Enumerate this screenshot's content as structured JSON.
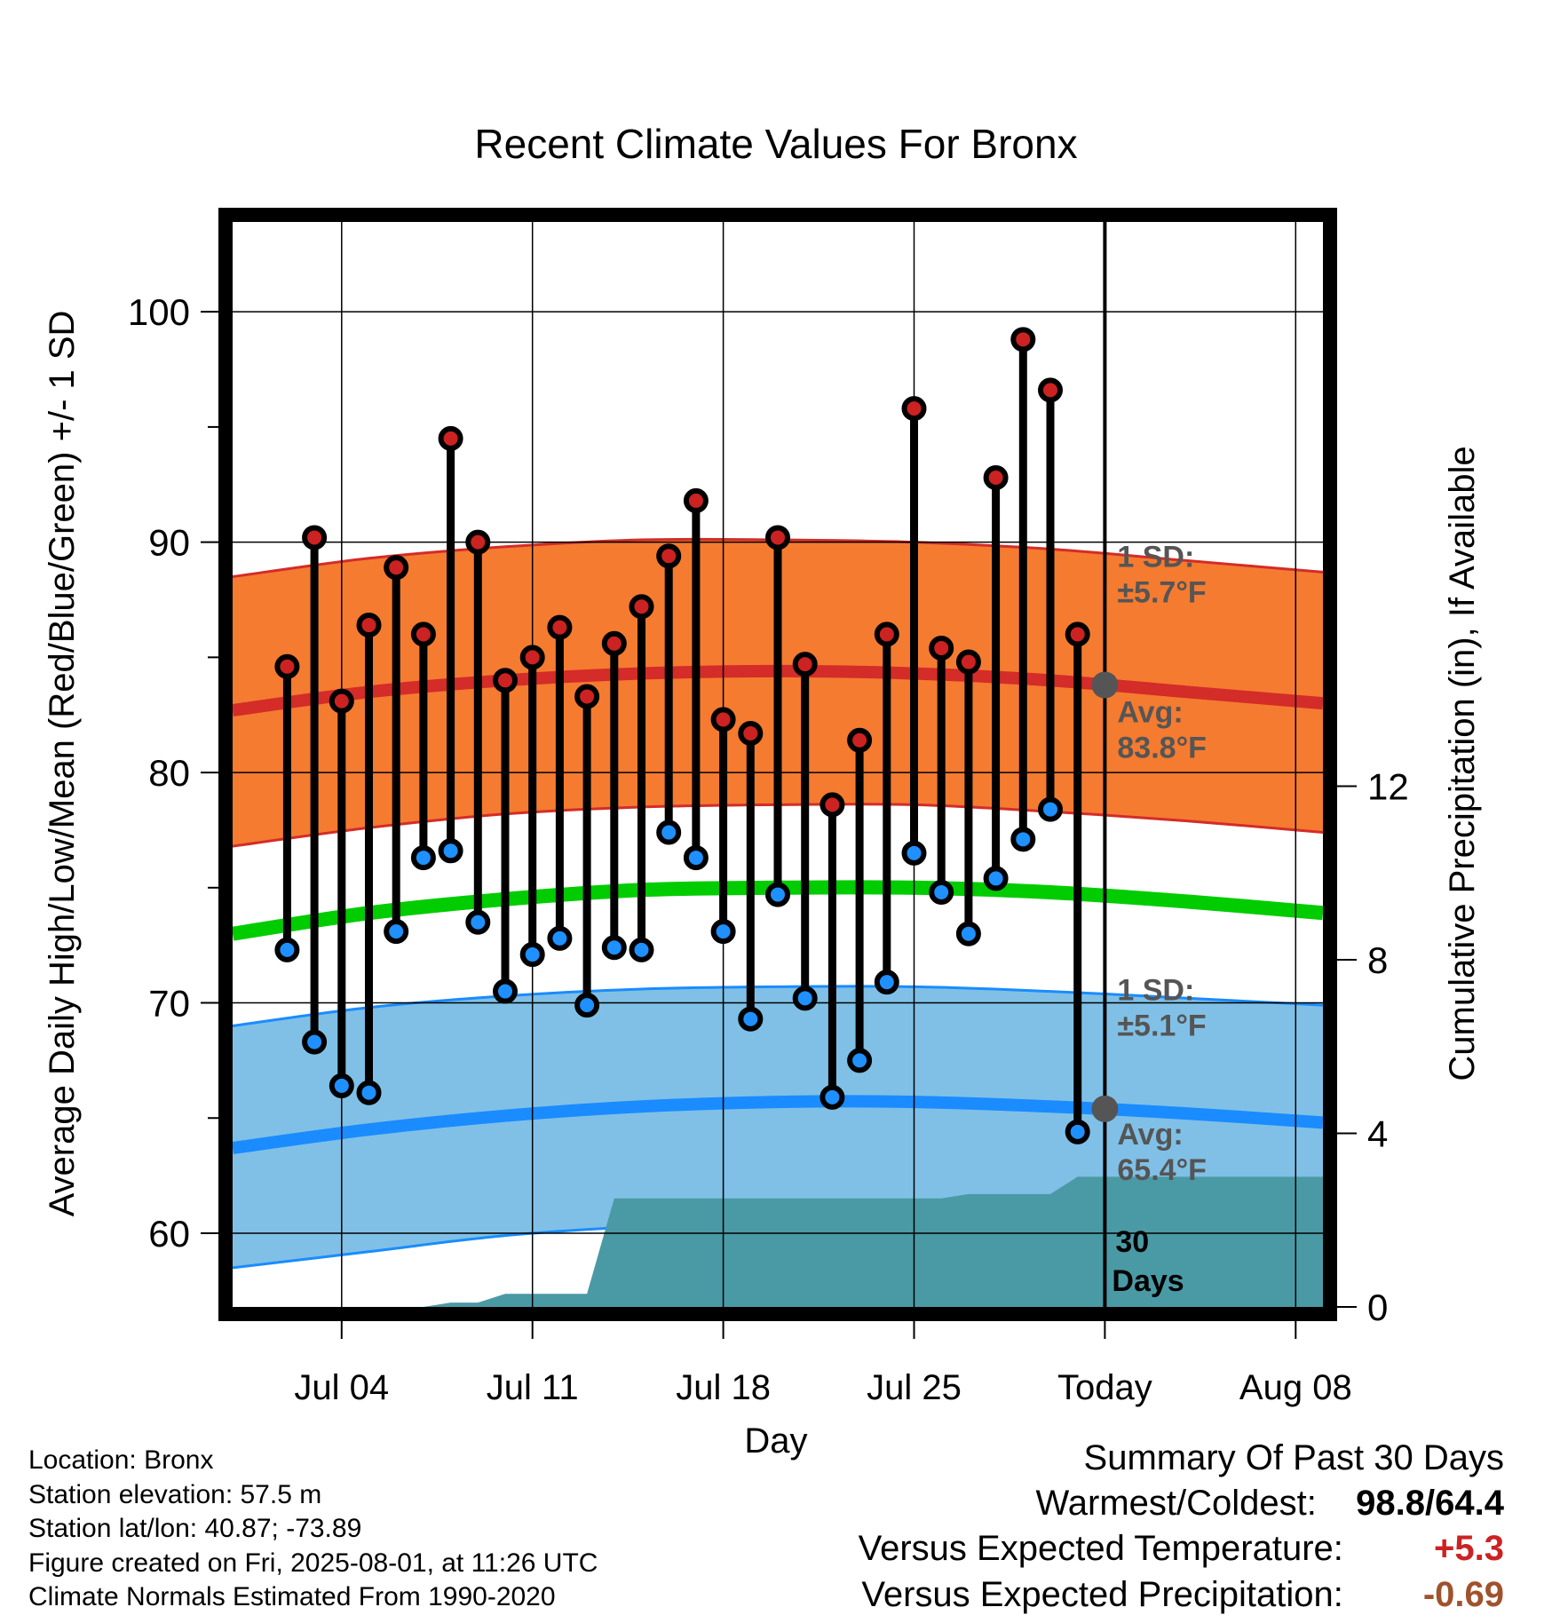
{
  "chart_data": {
    "type": "line",
    "title": "Recent Climate Values For Bronx",
    "xlabel": "Day",
    "ylabel": "Average Daily High/Low/Mean (Red/Blue/Green) +/- 1 SD",
    "y2label": "Cumulative Precipitation (in), If Available",
    "x_tick_labels": [
      "Jul 04",
      "Jul 11",
      "Jul 18",
      "Jul 25",
      "Today",
      "Aug 08"
    ],
    "x_tick_dates": [
      "2025-07-04",
      "2025-07-11",
      "2025-07-18",
      "2025-07-25",
      "2025-08-01",
      "2025-08-08"
    ],
    "xlim": [
      "2025-06-30",
      "2025-08-09"
    ],
    "ylim": [
      56.8,
      103.9
    ],
    "yticks": [
      60,
      70,
      80,
      90,
      100
    ],
    "y2lim": [
      0,
      25
    ],
    "y2ticks": [
      0,
      4,
      8,
      12
    ],
    "grid": true,
    "today": "2025-08-01",
    "today_label_lines": [
      "30",
      "Days"
    ],
    "dates": [
      "2025-07-02",
      "2025-07-03",
      "2025-07-04",
      "2025-07-05",
      "2025-07-06",
      "2025-07-07",
      "2025-07-08",
      "2025-07-09",
      "2025-07-10",
      "2025-07-11",
      "2025-07-12",
      "2025-07-13",
      "2025-07-14",
      "2025-07-15",
      "2025-07-16",
      "2025-07-17",
      "2025-07-18",
      "2025-07-19",
      "2025-07-20",
      "2025-07-21",
      "2025-07-22",
      "2025-07-23",
      "2025-07-24",
      "2025-07-25",
      "2025-07-26",
      "2025-07-27",
      "2025-07-28",
      "2025-07-29",
      "2025-07-30",
      "2025-07-31"
    ],
    "series": [
      {
        "name": "High",
        "color": "#cc2222",
        "values": [
          84.6,
          90.2,
          83.1,
          86.4,
          88.9,
          86.0,
          94.5,
          90.0,
          84.0,
          85.0,
          86.3,
          83.3,
          85.6,
          87.2,
          89.4,
          91.8,
          82.3,
          81.7,
          90.2,
          84.7,
          78.6,
          81.4,
          86.0,
          95.8,
          85.4,
          84.8,
          92.8,
          98.8,
          96.6,
          86.0
        ]
      },
      {
        "name": "Low",
        "color": "#1e90ff",
        "values": [
          72.3,
          68.3,
          66.4,
          66.1,
          73.1,
          76.3,
          76.6,
          73.5,
          70.5,
          72.1,
          72.8,
          69.9,
          72.4,
          72.3,
          77.4,
          76.3,
          73.1,
          69.3,
          74.7,
          70.2,
          65.9,
          67.5,
          70.9,
          76.5,
          74.8,
          73.0,
          75.4,
          77.1,
          78.4,
          64.4
        ]
      }
    ],
    "normals": {
      "dates": [
        "2025-06-30",
        "2025-07-05",
        "2025-07-10",
        "2025-07-15",
        "2025-07-20",
        "2025-07-25",
        "2025-07-30",
        "2025-08-04",
        "2025-08-09"
      ],
      "high_avg": [
        82.7,
        83.5,
        84.0,
        84.3,
        84.4,
        84.3,
        84.0,
        83.5,
        83.0
      ],
      "high_upper": [
        88.5,
        89.3,
        89.8,
        90.1,
        90.1,
        90.0,
        89.7,
        89.2,
        88.7
      ],
      "high_lower": [
        76.8,
        77.6,
        78.2,
        78.5,
        78.6,
        78.6,
        78.3,
        77.9,
        77.4
      ],
      "mean_avg": [
        73.0,
        73.9,
        74.5,
        74.9,
        75.0,
        75.0,
        74.8,
        74.4,
        73.9
      ],
      "low_avg": [
        63.7,
        64.5,
        65.1,
        65.5,
        65.7,
        65.7,
        65.5,
        65.2,
        64.8
      ],
      "low_upper": [
        69.0,
        69.8,
        70.3,
        70.6,
        70.7,
        70.7,
        70.5,
        70.2,
        69.9
      ],
      "low_lower": [
        58.5,
        59.2,
        59.9,
        60.3,
        60.6,
        60.7,
        60.5,
        60.2,
        59.8
      ],
      "high_colors": {
        "band": "#f47b30",
        "line": "#d42c28"
      },
      "mean_color": "#00cc00",
      "low_colors": {
        "band": "#80c0e6",
        "line": "#1a8cff"
      }
    },
    "precipitation": {
      "color": "#4a9aa5",
      "points": [
        [
          "2025-06-30",
          0
        ],
        [
          "2025-07-07",
          0
        ],
        [
          "2025-07-08",
          0.1
        ],
        [
          "2025-07-09",
          0.1
        ],
        [
          "2025-07-10",
          0.3
        ],
        [
          "2025-07-12",
          0.3
        ],
        [
          "2025-07-13",
          0.3
        ],
        [
          "2025-07-14",
          2.5
        ],
        [
          "2025-07-25",
          2.5
        ],
        [
          "2025-07-26",
          2.5
        ],
        [
          "2025-07-27",
          2.6
        ],
        [
          "2025-07-29",
          2.6
        ],
        [
          "2025-07-30",
          2.6
        ],
        [
          "2025-07-31",
          3.0
        ],
        [
          "2025-08-09",
          3.0
        ]
      ]
    },
    "annotations": {
      "high_sd": [
        "1 SD:",
        "±5.7°F"
      ],
      "high_avg": [
        "Avg:",
        "83.8°F"
      ],
      "low_sd": [
        "1 SD:",
        "±5.1°F"
      ],
      "low_avg": [
        "Avg:",
        "65.4°F"
      ],
      "today_high_avg": 83.8,
      "today_low_avg": 65.4,
      "color": "#555555"
    }
  },
  "station": {
    "location": "Location: Bronx",
    "elevation": "Station elevation: 57.5 m",
    "latlon": "Station lat/lon: 40.87; -73.89",
    "created": "Figure created on Fri, 2025-08-01, at 11:26 UTC",
    "normals": "Climate Normals Estimated From 1990-2020"
  },
  "summary": {
    "title": "Summary Of Past 30 Days",
    "warmest_label": "Warmest/Coldest:",
    "warmest_value": "98.8/64.4",
    "temp_label": "Versus Expected Temperature:",
    "temp_value": "+5.3",
    "temp_color": "#cc2222",
    "precip_label": "Versus Expected Precipitation:",
    "precip_value": "-0.69",
    "precip_color": "#a0522d"
  }
}
